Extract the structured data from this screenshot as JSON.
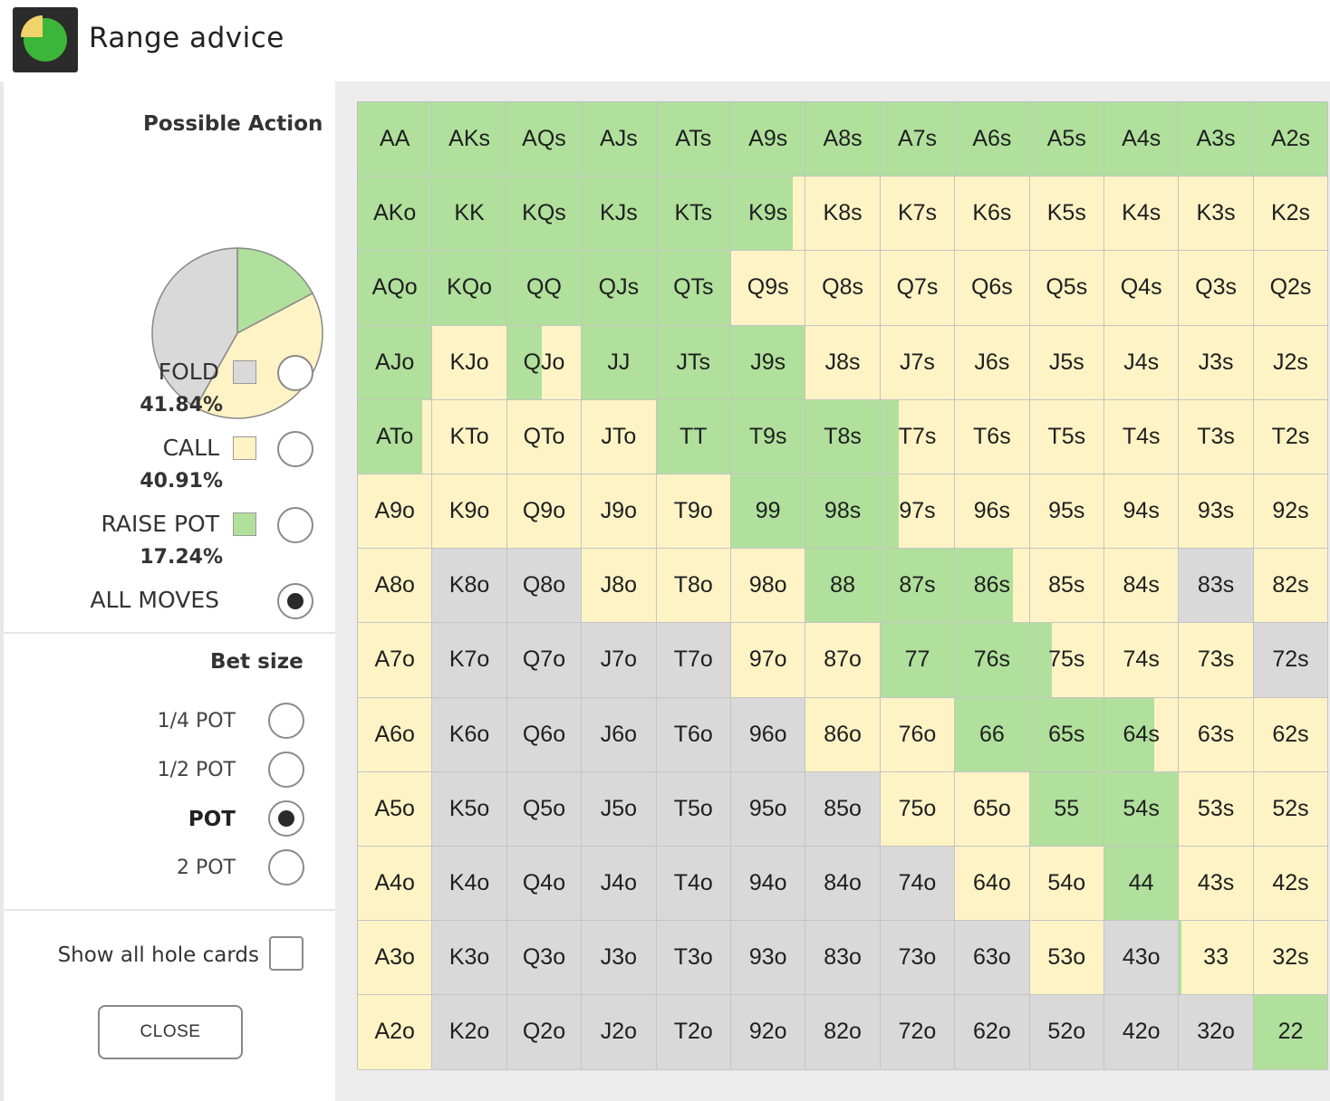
{
  "window": {
    "title": "Range advice"
  },
  "colors": {
    "fold": "#d9d9d9",
    "call": "#fdf3c5",
    "raise": "#b0e09c",
    "icon_green": "#3db53a",
    "icon_yellow": "#f2d36b"
  },
  "possible_action": {
    "title": "Possible Action",
    "options": [
      {
        "label": "FOLD",
        "percent": "41.84%",
        "value": 41.84,
        "selected": false
      },
      {
        "label": "CALL",
        "percent": "40.91%",
        "value": 40.91,
        "selected": false
      },
      {
        "label": "RAISE POT",
        "percent": "17.24%",
        "value": 17.24,
        "selected": false
      }
    ],
    "all_moves": {
      "label": "ALL MOVES",
      "selected": true
    }
  },
  "bet_size": {
    "title": "Bet size",
    "options": [
      {
        "label": "1/4 POT",
        "selected": false
      },
      {
        "label": "1/2 POT",
        "selected": false
      },
      {
        "label": "POT",
        "selected": true
      },
      {
        "label": "2 POT",
        "selected": false
      }
    ]
  },
  "show_all": {
    "label": "Show all hole cards",
    "checked": false
  },
  "close_label": "CLOSE",
  "grid": {
    "rows": [
      [
        "AA",
        "AKs",
        "AQs",
        "AJs",
        "ATs",
        "A9s",
        "A8s",
        "A7s",
        "A6s",
        "A5s",
        "A4s",
        "A3s",
        "A2s"
      ],
      [
        "AKo",
        "KK",
        "KQs",
        "KJs",
        "KTs",
        "K9s",
        "K8s",
        "K7s",
        "K6s",
        "K5s",
        "K4s",
        "K3s",
        "K2s"
      ],
      [
        "AQo",
        "KQo",
        "QQ",
        "QJs",
        "QTs",
        "Q9s",
        "Q8s",
        "Q7s",
        "Q6s",
        "Q5s",
        "Q4s",
        "Q3s",
        "Q2s"
      ],
      [
        "AJo",
        "KJo",
        "QJo",
        "JJ",
        "JTs",
        "J9s",
        "J8s",
        "J7s",
        "J6s",
        "J5s",
        "J4s",
        "J3s",
        "J2s"
      ],
      [
        "ATo",
        "KTo",
        "QTo",
        "JTo",
        "TT",
        "T9s",
        "T8s",
        "T7s",
        "T6s",
        "T5s",
        "T4s",
        "T3s",
        "T2s"
      ],
      [
        "A9o",
        "K9o",
        "Q9o",
        "J9o",
        "T9o",
        "99",
        "98s",
        "97s",
        "96s",
        "95s",
        "94s",
        "93s",
        "92s"
      ],
      [
        "A8o",
        "K8o",
        "Q8o",
        "J8o",
        "T8o",
        "98o",
        "88",
        "87s",
        "86s",
        "85s",
        "84s",
        "83s",
        "82s"
      ],
      [
        "A7o",
        "K7o",
        "Q7o",
        "J7o",
        "T7o",
        "97o",
        "87o",
        "77",
        "76s",
        "75s",
        "74s",
        "73s",
        "72s"
      ],
      [
        "A6o",
        "K6o",
        "Q6o",
        "J6o",
        "T6o",
        "96o",
        "86o",
        "76o",
        "66",
        "65s",
        "64s",
        "63s",
        "62s"
      ],
      [
        "A5o",
        "K5o",
        "Q5o",
        "J5o",
        "T5o",
        "95o",
        "85o",
        "75o",
        "65o",
        "55",
        "54s",
        "53s",
        "52s"
      ],
      [
        "A4o",
        "K4o",
        "Q4o",
        "J4o",
        "T4o",
        "94o",
        "84o",
        "74o",
        "64o",
        "54o",
        "44",
        "43s",
        "42s"
      ],
      [
        "A3o",
        "K3o",
        "Q3o",
        "J3o",
        "T3o",
        "93o",
        "83o",
        "73o",
        "63o",
        "53o",
        "43o",
        "33",
        "32s"
      ],
      [
        "A2o",
        "K2o",
        "Q2o",
        "J2o",
        "T2o",
        "92o",
        "82o",
        "72o",
        "62o",
        "52o",
        "42o",
        "32o",
        "22"
      ]
    ],
    "mix": {
      "legend": "raise, call, fold fractions per hand",
      "rows": [
        [
          [
            1,
            0,
            0
          ],
          [
            1,
            0,
            0
          ],
          [
            1,
            0,
            0
          ],
          [
            1,
            0,
            0
          ],
          [
            1,
            0,
            0
          ],
          [
            1,
            0,
            0
          ],
          [
            1,
            0,
            0
          ],
          [
            1,
            0,
            0
          ],
          [
            1,
            0,
            0
          ],
          [
            1,
            0,
            0
          ],
          [
            1,
            0,
            0
          ],
          [
            1,
            0,
            0
          ],
          [
            1,
            0,
            0
          ]
        ],
        [
          [
            1,
            0,
            0
          ],
          [
            1,
            0,
            0
          ],
          [
            1,
            0,
            0
          ],
          [
            1,
            0,
            0
          ],
          [
            1,
            0,
            0
          ],
          [
            0.84,
            0.16,
            0
          ],
          [
            0,
            1,
            0
          ],
          [
            0,
            1,
            0
          ],
          [
            0,
            1,
            0
          ],
          [
            0,
            1,
            0
          ],
          [
            0,
            1,
            0
          ],
          [
            0,
            1,
            0
          ],
          [
            0,
            1,
            0
          ]
        ],
        [
          [
            1,
            0,
            0
          ],
          [
            1,
            0,
            0
          ],
          [
            1,
            0,
            0
          ],
          [
            1,
            0,
            0
          ],
          [
            1,
            0,
            0
          ],
          [
            0,
            1,
            0
          ],
          [
            0,
            1,
            0
          ],
          [
            0,
            1,
            0
          ],
          [
            0,
            1,
            0
          ],
          [
            0,
            1,
            0
          ],
          [
            0,
            1,
            0
          ],
          [
            0,
            1,
            0
          ],
          [
            0,
            1,
            0
          ]
        ],
        [
          [
            1,
            0,
            0
          ],
          [
            0,
            1,
            0
          ],
          [
            0.47,
            0.53,
            0
          ],
          [
            1,
            0,
            0
          ],
          [
            1,
            0,
            0
          ],
          [
            1,
            0,
            0
          ],
          [
            0,
            1,
            0
          ],
          [
            0,
            1,
            0
          ],
          [
            0,
            1,
            0
          ],
          [
            0,
            1,
            0
          ],
          [
            0,
            1,
            0
          ],
          [
            0,
            1,
            0
          ],
          [
            0,
            1,
            0
          ]
        ],
        [
          [
            0.87,
            0.13,
            0
          ],
          [
            0,
            1,
            0
          ],
          [
            0,
            1,
            0
          ],
          [
            0,
            1,
            0
          ],
          [
            1,
            0,
            0
          ],
          [
            1,
            0,
            0
          ],
          [
            1,
            0,
            0
          ],
          [
            0.25,
            0.75,
            0
          ],
          [
            0,
            1,
            0
          ],
          [
            0,
            1,
            0
          ],
          [
            0,
            1,
            0
          ],
          [
            0,
            1,
            0
          ],
          [
            0,
            1,
            0
          ]
        ],
        [
          [
            0,
            1,
            0
          ],
          [
            0,
            1,
            0
          ],
          [
            0,
            1,
            0
          ],
          [
            0,
            1,
            0
          ],
          [
            0,
            1,
            0
          ],
          [
            1,
            0,
            0
          ],
          [
            1,
            0,
            0
          ],
          [
            0.25,
            0.75,
            0
          ],
          [
            0,
            1,
            0
          ],
          [
            0,
            1,
            0
          ],
          [
            0,
            1,
            0
          ],
          [
            0,
            1,
            0
          ],
          [
            0,
            1,
            0
          ]
        ],
        [
          [
            0,
            1,
            0
          ],
          [
            0,
            0,
            1
          ],
          [
            0,
            0,
            1
          ],
          [
            0,
            1,
            0
          ],
          [
            0,
            1,
            0
          ],
          [
            0,
            1,
            0
          ],
          [
            1,
            0,
            0
          ],
          [
            1,
            0,
            0
          ],
          [
            0.78,
            0.22,
            0
          ],
          [
            0,
            1,
            0
          ],
          [
            0,
            1,
            0
          ],
          [
            0,
            0,
            1
          ],
          [
            0,
            1,
            0
          ]
        ],
        [
          [
            0,
            1,
            0
          ],
          [
            0,
            0,
            1
          ],
          [
            0,
            0,
            1
          ],
          [
            0,
            0,
            1
          ],
          [
            0,
            0,
            1
          ],
          [
            0,
            1,
            0
          ],
          [
            0,
            1,
            0
          ],
          [
            1,
            0,
            0
          ],
          [
            1,
            0,
            0
          ],
          [
            0.3,
            0.7,
            0
          ],
          [
            0,
            1,
            0
          ],
          [
            0,
            1,
            0
          ],
          [
            0,
            0,
            1
          ]
        ],
        [
          [
            0,
            1,
            0
          ],
          [
            0,
            0,
            1
          ],
          [
            0,
            0,
            1
          ],
          [
            0,
            0,
            1
          ],
          [
            0,
            0,
            1
          ],
          [
            0,
            0,
            1
          ],
          [
            0,
            1,
            0
          ],
          [
            0,
            1,
            0
          ],
          [
            1,
            0,
            0
          ],
          [
            1,
            0,
            0
          ],
          [
            0.68,
            0.32,
            0
          ],
          [
            0,
            1,
            0
          ],
          [
            0,
            1,
            0
          ]
        ],
        [
          [
            0,
            1,
            0
          ],
          [
            0,
            0,
            1
          ],
          [
            0,
            0,
            1
          ],
          [
            0,
            0,
            1
          ],
          [
            0,
            0,
            1
          ],
          [
            0,
            0,
            1
          ],
          [
            0,
            0,
            1
          ],
          [
            0,
            1,
            0
          ],
          [
            0,
            1,
            0
          ],
          [
            1,
            0,
            0
          ],
          [
            1,
            0,
            0
          ],
          [
            0,
            1,
            0
          ],
          [
            0,
            1,
            0
          ]
        ],
        [
          [
            0,
            1,
            0
          ],
          [
            0,
            0,
            1
          ],
          [
            0,
            0,
            1
          ],
          [
            0,
            0,
            1
          ],
          [
            0,
            0,
            1
          ],
          [
            0,
            0,
            1
          ],
          [
            0,
            0,
            1
          ],
          [
            0,
            0,
            1
          ],
          [
            0,
            1,
            0
          ],
          [
            0,
            1,
            0
          ],
          [
            1,
            0,
            0
          ],
          [
            0,
            1,
            0
          ],
          [
            0,
            1,
            0
          ]
        ],
        [
          [
            0,
            1,
            0
          ],
          [
            0,
            0,
            1
          ],
          [
            0,
            0,
            1
          ],
          [
            0,
            0,
            1
          ],
          [
            0,
            0,
            1
          ],
          [
            0,
            0,
            1
          ],
          [
            0,
            0,
            1
          ],
          [
            0,
            0,
            1
          ],
          [
            0,
            0,
            1
          ],
          [
            0,
            1,
            0
          ],
          [
            0,
            0,
            1
          ],
          [
            0.03,
            0.97,
            0
          ],
          [
            0,
            1,
            0
          ]
        ],
        [
          [
            0,
            1,
            0
          ],
          [
            0,
            0,
            1
          ],
          [
            0,
            0,
            1
          ],
          [
            0,
            0,
            1
          ],
          [
            0,
            0,
            1
          ],
          [
            0,
            0,
            1
          ],
          [
            0,
            0,
            1
          ],
          [
            0,
            0,
            1
          ],
          [
            0,
            0,
            1
          ],
          [
            0,
            0,
            1
          ],
          [
            0,
            0,
            1
          ],
          [
            0,
            0,
            1
          ],
          [
            1,
            0,
            0
          ]
        ]
      ]
    }
  }
}
